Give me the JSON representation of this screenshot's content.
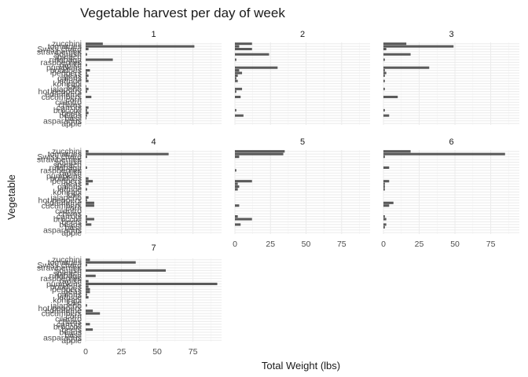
{
  "chart_data": {
    "type": "bar",
    "orientation": "horizontal",
    "faceted": true,
    "title": "Vegetable harvest per day of week",
    "xlabel": "Total Weight (lbs)",
    "ylabel": "Vegetable",
    "xlim": [
      0,
      95
    ],
    "x_ticks": [
      0,
      25,
      50,
      75
    ],
    "grid": true,
    "bar_color": "#595959",
    "categories": [
      "apple",
      "asparagus",
      "basil",
      "beans",
      "beets",
      "broccoli",
      "carrots",
      "chives",
      "cilantro",
      "corn",
      "cucumbers",
      "edamame",
      "hot peppers",
      "jalapeño",
      "kale",
      "kohlrabi",
      "lettuce",
      "onions",
      "peas",
      "peppers",
      "potatoes",
      "pumpkins",
      "radish",
      "raspberries",
      "rutabaga",
      "spinach",
      "squash",
      "strawberries",
      "Swiss chard",
      "tomatoes",
      "zucchini"
    ],
    "facets": [
      {
        "label": "1",
        "values": [
          0,
          0,
          0.5,
          1,
          2,
          1,
          2,
          0,
          0,
          0,
          4,
          0,
          1,
          2,
          0.5,
          0,
          2,
          1,
          2,
          1,
          3,
          0,
          1,
          0,
          19,
          0,
          1,
          0,
          2,
          76,
          12
        ]
      },
      {
        "label": "2",
        "values": [
          0,
          0,
          0,
          6,
          0,
          1,
          0,
          0,
          0,
          0,
          4,
          0,
          1,
          5,
          0,
          0,
          2,
          1,
          2,
          5,
          3,
          30,
          0,
          0,
          1,
          0,
          24,
          0,
          12,
          3,
          12
        ]
      },
      {
        "label": "3",
        "values": [
          0,
          0,
          0,
          4,
          0,
          1,
          0,
          0,
          0,
          0,
          10,
          0,
          0,
          1,
          0,
          0,
          1,
          0,
          1,
          2,
          1,
          32,
          0,
          0,
          1,
          0,
          19,
          0,
          2,
          49,
          16
        ]
      },
      {
        "label": "4",
        "values": [
          0,
          0,
          0,
          4,
          1,
          6,
          1,
          0,
          0,
          0,
          6,
          6,
          1,
          2,
          0,
          0,
          1,
          0,
          2,
          5,
          2,
          0,
          0,
          0,
          1,
          0,
          0,
          0,
          1,
          58,
          2
        ]
      },
      {
        "label": "5",
        "values": [
          0,
          0,
          0,
          4,
          0,
          12,
          2,
          0,
          0,
          0,
          3,
          0,
          0,
          0,
          0,
          0,
          2,
          3,
          2,
          12,
          0,
          0,
          0,
          1,
          0,
          0,
          0,
          0,
          3,
          34,
          35
        ]
      },
      {
        "label": "6",
        "values": [
          0,
          0,
          1,
          2,
          0,
          2,
          1,
          0,
          0,
          0,
          4,
          7,
          0,
          0,
          0,
          0,
          1,
          1,
          1,
          4,
          0,
          0,
          0,
          0,
          4,
          0,
          0,
          0,
          1,
          85,
          19
        ]
      },
      {
        "label": "7",
        "values": [
          0,
          0,
          0,
          0,
          5,
          0,
          3,
          0,
          0,
          0,
          10,
          5,
          0,
          1,
          0,
          0,
          2,
          1,
          3,
          3,
          2,
          92,
          2,
          0,
          7,
          0,
          56,
          0,
          1,
          35,
          3
        ]
      }
    ]
  }
}
